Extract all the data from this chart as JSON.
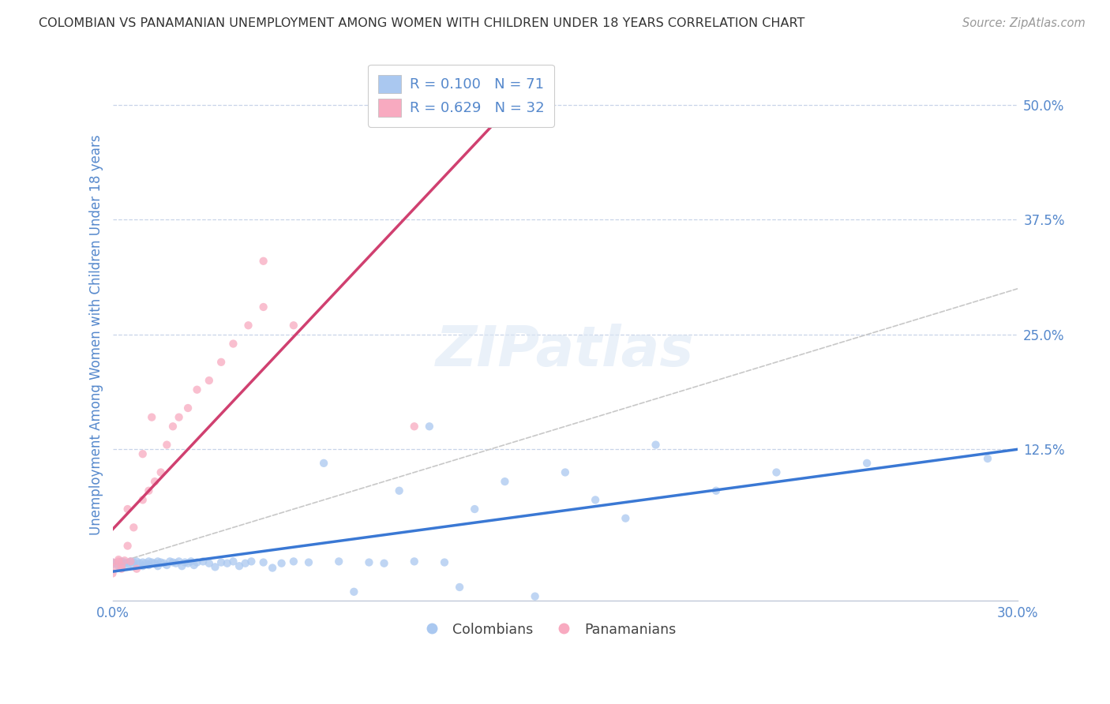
{
  "title": "COLOMBIAN VS PANAMANIAN UNEMPLOYMENT AMONG WOMEN WITH CHILDREN UNDER 18 YEARS CORRELATION CHART",
  "source": "Source: ZipAtlas.com",
  "ylabel": "Unemployment Among Women with Children Under 18 years",
  "ytick_labels": [
    "12.5%",
    "25.0%",
    "37.5%",
    "50.0%"
  ],
  "ytick_values": [
    0.125,
    0.25,
    0.375,
    0.5
  ],
  "xlim": [
    0.0,
    0.3
  ],
  "ylim": [
    -0.04,
    0.54
  ],
  "legend_R_colombians": "R = 0.100",
  "legend_N_colombians": "N = 71",
  "legend_R_panamanians": "R = 0.629",
  "legend_N_panamanians": "N = 32",
  "colombian_color": "#aac8f0",
  "panamanian_color": "#f8aac0",
  "colombian_line_color": "#3a78d4",
  "panamanian_line_color": "#d04070",
  "diagonal_color": "#c8c8c8",
  "grid_color": "#c8d4e8",
  "background_color": "#ffffff",
  "watermark": "ZIPatlas",
  "title_color": "#333333",
  "source_color": "#999999",
  "tick_color": "#5588cc",
  "label_color": "#5588cc"
}
